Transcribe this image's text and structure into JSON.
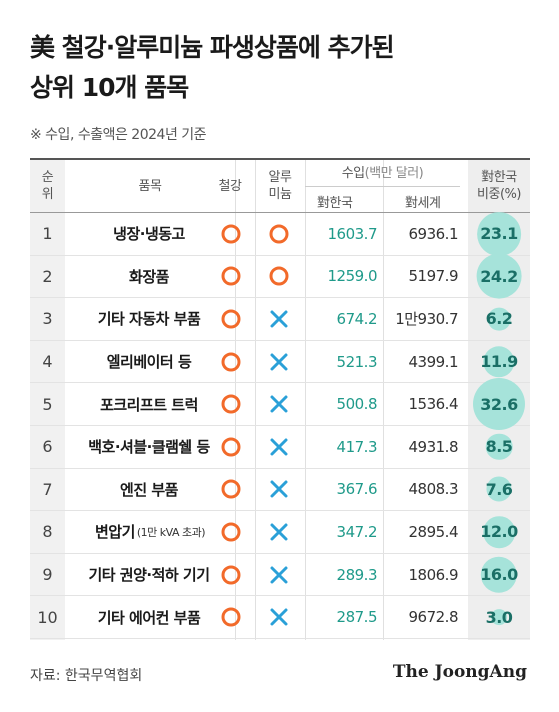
{
  "title": {
    "line1": "美 철강·알루미늄 파생상품에 추가된",
    "line2": "상위 10개 품목"
  },
  "note": "※ 수입, 수출액은 2024년 기준",
  "headers": {
    "rank": "순위",
    "item": "품목",
    "steel": "철강",
    "aluminum": "알루미늄",
    "import_main": "수입",
    "import_unit": "(백만 달러)",
    "to_korea": "對한국",
    "to_world": "對세계",
    "ratio_line1": "對한국",
    "ratio_line2": "비중(%)"
  },
  "rows": [
    {
      "rank": "1",
      "item": "냉장·냉동고",
      "item_sub": "",
      "steel": "O",
      "aluminum": "O",
      "korea": "1603.7",
      "world": "6936.1",
      "ratio": "23.1",
      "ratio_value": 23.1
    },
    {
      "rank": "2",
      "item": "화장품",
      "item_sub": "",
      "steel": "O",
      "aluminum": "O",
      "korea": "1259.0",
      "world": "5197.9",
      "ratio": "24.2",
      "ratio_value": 24.2
    },
    {
      "rank": "3",
      "item": "기타 자동차 부품",
      "item_sub": "",
      "steel": "O",
      "aluminum": "X",
      "korea": "674.2",
      "world": "1만930.7",
      "ratio": "6.2",
      "ratio_value": 6.2
    },
    {
      "rank": "4",
      "item": "엘리베이터 등",
      "item_sub": "",
      "steel": "O",
      "aluminum": "X",
      "korea": "521.3",
      "world": "4399.1",
      "ratio": "11.9",
      "ratio_value": 11.9
    },
    {
      "rank": "5",
      "item": "포크리프트 트럭",
      "item_sub": "",
      "steel": "O",
      "aluminum": "X",
      "korea": "500.8",
      "world": "1536.4",
      "ratio": "32.6",
      "ratio_value": 32.6
    },
    {
      "rank": "6",
      "item": "백호·셔블·클램쉘 등",
      "item_sub": "",
      "steel": "O",
      "aluminum": "X",
      "korea": "417.3",
      "world": "4931.8",
      "ratio": "8.5",
      "ratio_value": 8.5
    },
    {
      "rank": "7",
      "item": "엔진 부품",
      "item_sub": "",
      "steel": "O",
      "aluminum": "X",
      "korea": "367.6",
      "world": "4808.3",
      "ratio": "7.6",
      "ratio_value": 7.6
    },
    {
      "rank": "8",
      "item": "변압기",
      "item_sub": "(1만 kVA 초과)",
      "steel": "O",
      "aluminum": "X",
      "korea": "347.2",
      "world": "2895.4",
      "ratio": "12.0",
      "ratio_value": 12.0
    },
    {
      "rank": "9",
      "item": "기타 권양·적하 기기",
      "item_sub": "",
      "steel": "O",
      "aluminum": "X",
      "korea": "289.3",
      "world": "1806.9",
      "ratio": "16.0",
      "ratio_value": 16.0
    },
    {
      "rank": "10",
      "item": "기타 에어컨 부품",
      "item_sub": "",
      "steel": "O",
      "aluminum": "X",
      "korea": "287.5",
      "world": "9672.8",
      "ratio": "3.0",
      "ratio_value": 3.0
    }
  ],
  "colors": {
    "circle_mark": "#f26a2a",
    "x_mark": "#2aa0d8",
    "bubble": "#a6e3da",
    "korea_text": "#1f9a8a"
  },
  "footer": {
    "source": "자료: 한국무역협회",
    "brand": "The JoongAng"
  }
}
